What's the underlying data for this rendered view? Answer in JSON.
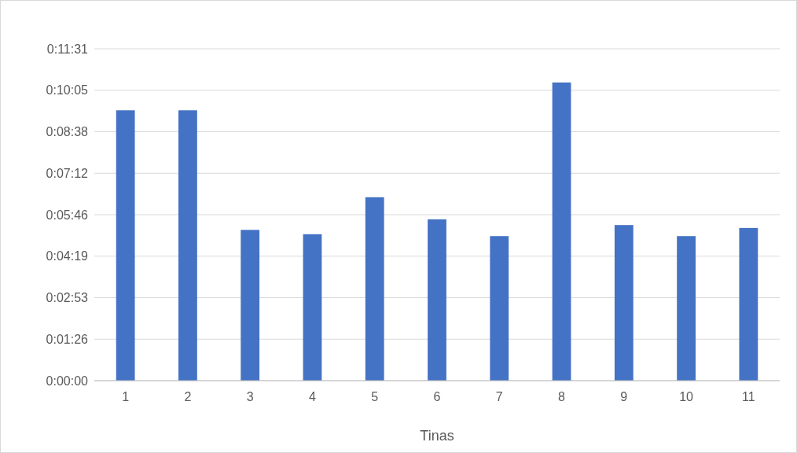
{
  "chart_data": {
    "type": "bar",
    "xlabel": "Tinas",
    "categories": [
      "1",
      "2",
      "3",
      "4",
      "5",
      "6",
      "7",
      "8",
      "9",
      "10",
      "11"
    ],
    "values": [
      563,
      563,
      314,
      305,
      382,
      336,
      301,
      621,
      324,
      301,
      318
    ],
    "color": "#4472c4",
    "ylim": [
      0,
      691.2
    ],
    "yticks": [
      {
        "value": 0,
        "label": "0:00:00"
      },
      {
        "value": 86.4,
        "label": "0:01:26"
      },
      {
        "value": 172.8,
        "label": "0:02:53"
      },
      {
        "value": 259.2,
        "label": "0:04:19"
      },
      {
        "value": 345.6,
        "label": "0:05:46"
      },
      {
        "value": 432,
        "label": "0:07:12"
      },
      {
        "value": 518.4,
        "label": "0:08:38"
      },
      {
        "value": 604.8,
        "label": "0:10:05"
      },
      {
        "value": 691.2,
        "label": "0:11:31"
      }
    ],
    "grid": "y"
  }
}
